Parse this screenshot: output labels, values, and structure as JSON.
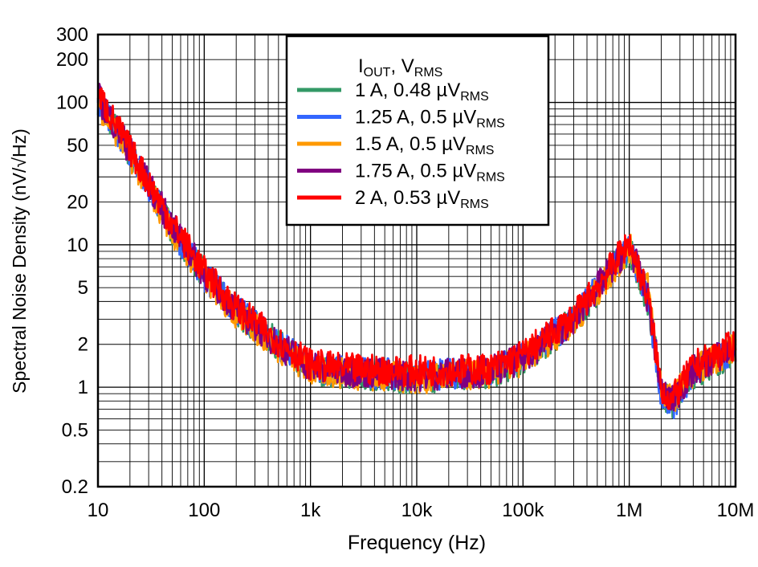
{
  "chart_data": {
    "type": "line",
    "xlabel": "Frequency (Hz)",
    "ylabel": "Spectral Noise Density (nV/√Hz)",
    "x_scale": "log",
    "y_scale": "log",
    "xlim": [
      10,
      10000000
    ],
    "ylim": [
      0.2,
      300
    ],
    "grid": true,
    "x_ticks": [
      {
        "v": 10,
        "label": "10"
      },
      {
        "v": 100,
        "label": "100"
      },
      {
        "v": 1000,
        "label": "1k"
      },
      {
        "v": 10000,
        "label": "10k"
      },
      {
        "v": 100000,
        "label": "100k"
      },
      {
        "v": 1000000,
        "label": "1M"
      },
      {
        "v": 10000000,
        "label": "10M"
      }
    ],
    "y_ticks": [
      {
        "v": 0.2,
        "label": "0.2"
      },
      {
        "v": 0.5,
        "label": "0.5"
      },
      {
        "v": 1,
        "label": "1"
      },
      {
        "v": 2,
        "label": "2"
      },
      {
        "v": 5,
        "label": "5"
      },
      {
        "v": 10,
        "label": "10"
      },
      {
        "v": 20,
        "label": "20"
      },
      {
        "v": 50,
        "label": "50"
      },
      {
        "v": 100,
        "label": "100"
      },
      {
        "v": 200,
        "label": "200"
      },
      {
        "v": 300,
        "label": "300"
      }
    ],
    "legend": {
      "placement": "top-center",
      "title_main": "I",
      "title_sub1": "OUT",
      "title_mid": ", V",
      "title_sub2": "RMS"
    },
    "x": [
      10,
      20,
      50,
      100,
      200,
      500,
      1000,
      2000,
      10000,
      50000,
      100000,
      300000,
      600000,
      1000000,
      1500000,
      2000000,
      2500000,
      4000000,
      10000000
    ],
    "series": [
      {
        "name": "1 A, 0.48 µV",
        "sub": "RMS",
        "color": "#339966",
        "values": [
          105,
          44,
          13,
          6.2,
          3.4,
          2.0,
          1.35,
          1.25,
          1.15,
          1.25,
          1.55,
          2.9,
          5.8,
          9.5,
          4.0,
          0.95,
          0.75,
          1.25,
          1.8
        ]
      },
      {
        "name": "1.25 A, 0.5 µV",
        "sub": "RMS",
        "color": "#3366ff",
        "values": [
          108,
          45,
          13,
          6.1,
          3.5,
          2.0,
          1.4,
          1.3,
          1.2,
          1.3,
          1.6,
          3.0,
          5.9,
          9.8,
          4.0,
          0.9,
          0.72,
          1.3,
          1.9
        ]
      },
      {
        "name": "1.5 A, 0.5 µV",
        "sub": "RMS",
        "color": "#ff9900",
        "values": [
          100,
          43,
          12.5,
          5.9,
          3.3,
          1.9,
          1.3,
          1.25,
          1.15,
          1.25,
          1.55,
          2.9,
          5.6,
          9.6,
          5.0,
          1.0,
          0.8,
          1.3,
          1.9
        ]
      },
      {
        "name": "1.75 A, 0.5 µV",
        "sub": "RMS",
        "color": "#800080",
        "values": [
          110,
          46,
          13.5,
          6.3,
          3.5,
          2.0,
          1.4,
          1.3,
          1.2,
          1.3,
          1.6,
          3.0,
          6.0,
          10,
          4.2,
          0.95,
          0.78,
          1.3,
          1.9
        ]
      },
      {
        "name": "2 A, 0.53 µV",
        "sub": "RMS",
        "color": "#ff0000",
        "values": [
          115,
          47,
          14,
          6.5,
          3.6,
          2.1,
          1.45,
          1.35,
          1.3,
          1.35,
          1.7,
          3.1,
          6.2,
          10.5,
          4.3,
          1.0,
          0.8,
          1.4,
          2.0
        ]
      }
    ]
  }
}
